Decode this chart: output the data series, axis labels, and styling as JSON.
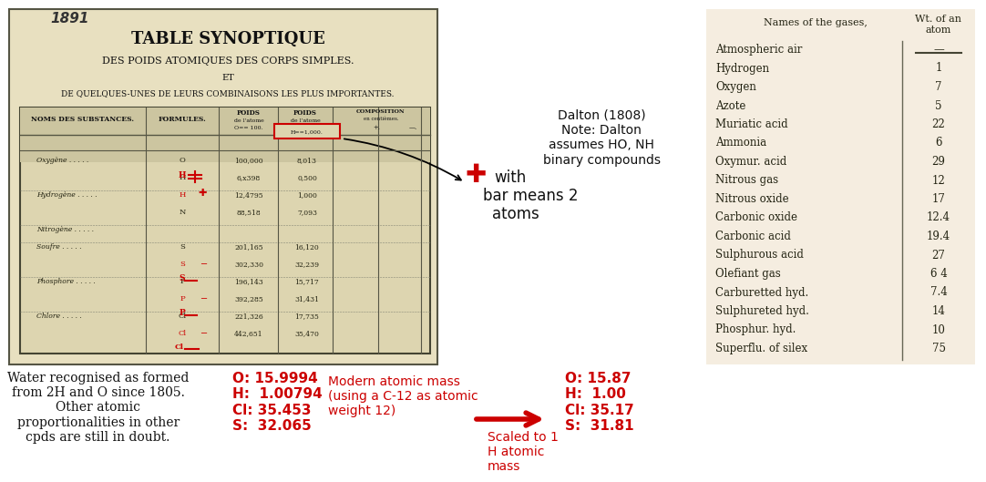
{
  "title": "Berzelius' Table of Atomic Weights",
  "bg_color": "#ffffff",
  "old_table_bg": "#f0ead8",
  "dalton_table_bg": "#f5ede0",
  "berzelius_image_placeholder": true,
  "berzelius_title_line1": "TABLE SYNOPTIQUE",
  "berzelius_title_line2": "DES POIDS ATOMIQUES DES CORPS SIMPLES.",
  "berzelius_title_line3": "ET",
  "berzelius_title_line4": "DE QUELQUES-UNES DE LEURS COMBINAISONS LES PLUS IMPORTANTES.",
  "year_label": "1891",
  "plus_with_bar_label": "✚  with\nbar means 2\natoms",
  "plus_with_bar_color": "#cc0000",
  "dalton_note": "Dalton (1808)\nNote: Dalton\nassumes HO, NH\nbinary compounds",
  "dalton_table_header": [
    "Names of the gases,",
    "Wt. of an\natom"
  ],
  "dalton_table_rows": [
    [
      "Atmospheric air",
      "—"
    ],
    [
      "Hydrogen",
      "1"
    ],
    [
      "Oxygen",
      "7"
    ],
    [
      "Azote",
      "5"
    ],
    [
      "Muriatic acid",
      "22"
    ],
    [
      "Ammonia",
      "6"
    ],
    [
      "Oxymur. acid",
      "29"
    ],
    [
      "Nitrous gas",
      "12"
    ],
    [
      "Nitrous oxide",
      "17"
    ],
    [
      "Carbonic oxide",
      "12.4"
    ],
    [
      "Carbonic acid",
      "19.4"
    ],
    [
      "Sulphurous acid",
      "27"
    ],
    [
      "Olefiant gas",
      "6 4"
    ],
    [
      "Carburetted hyd.",
      "7.4"
    ],
    [
      "Sulphureted hyd.",
      "14"
    ],
    [
      "Phosphur. hyd.",
      "10"
    ],
    [
      "Superflu. of silex",
      "75"
    ]
  ],
  "bottom_left_text": "Water recognised as formed\nfrom 2H and O since 1805.\nOther atomic\nproportionalities in other\ncpds are still in doubt.",
  "modern_mass_label": "O: 15.9994\nH:  1.00794\nCl: 35.453\nS:  32.065",
  "modern_mass_note": "Modern atomic mass\n(using a C-12 as atomic\nweight 12)",
  "arrow_label": "Scaled to 1\nH atomic\nmass",
  "scaled_mass_label": "O: 15.87\nH:  1.00\nCl: 35.17\nS:  31.81",
  "red_color": "#cc0000",
  "black_color": "#000000",
  "table_bg": "#f0e8d0"
}
